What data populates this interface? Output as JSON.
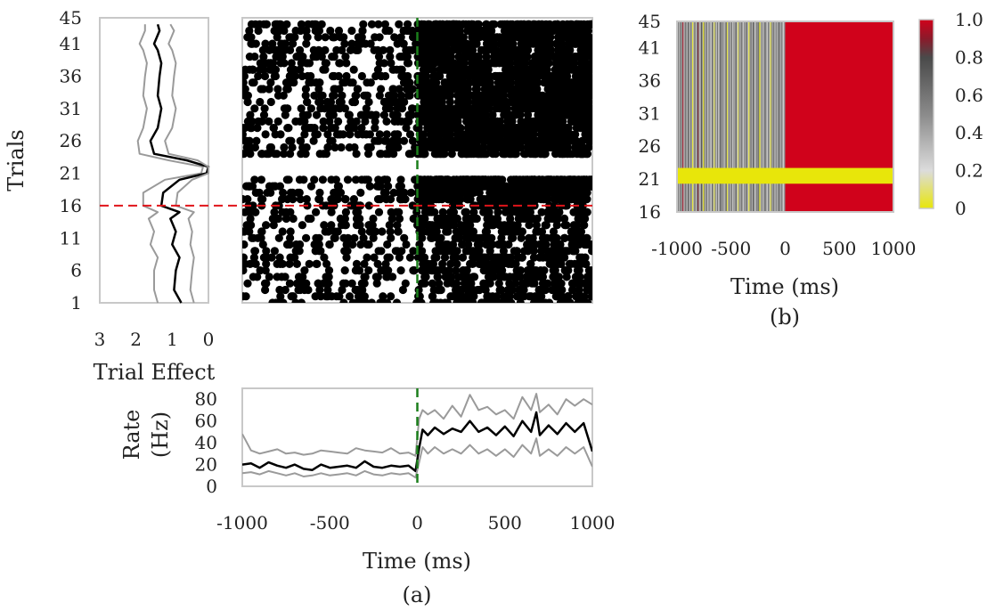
{
  "figure": {
    "panel_a_caption": "(a)",
    "panel_b_caption": "(b)"
  },
  "colors": {
    "frame": "#c8c8c8",
    "mean_line": "#000000",
    "band_line": "#9a9a9a",
    "spike": "#000000",
    "onset_marker": "#1b7f1b",
    "split_marker": "#e0141a",
    "heat_high": "#d0021b",
    "heat_low": "#e8e60a"
  },
  "chart_data": [
    {
      "id": "trial_effect",
      "type": "line",
      "xlabel": "Trial Effect",
      "ylabel": "Trials",
      "xlim": [
        3,
        0
      ],
      "ylim": [
        1,
        45
      ],
      "xticks": [
        3,
        2,
        1,
        0
      ],
      "yticks": [
        1,
        6,
        11,
        16,
        21,
        26,
        31,
        36,
        41,
        45
      ],
      "change_point_trial": 16,
      "series": [
        {
          "role": "lower",
          "y": [
            1,
            3,
            6,
            8,
            10,
            12,
            14,
            15,
            16,
            18,
            20,
            21,
            22,
            23,
            24,
            26,
            28,
            31,
            33,
            36,
            38,
            40,
            41,
            43,
            44
          ],
          "x": [
            1.4,
            1.5,
            1.5,
            1.4,
            1.6,
            1.5,
            1.65,
            1.4,
            1.8,
            1.8,
            1.2,
            0.2,
            0.15,
            1.1,
            1.9,
            1.95,
            1.8,
            1.7,
            1.8,
            1.75,
            1.7,
            1.8,
            1.9,
            1.75,
            1.75
          ]
        },
        {
          "role": "mean",
          "y": [
            1,
            3,
            6,
            8,
            10,
            12,
            14,
            15,
            16,
            18,
            20,
            21,
            22,
            23,
            24,
            26,
            28,
            31,
            33,
            36,
            38,
            40,
            41,
            43,
            44
          ],
          "x": [
            0.75,
            0.95,
            0.9,
            0.8,
            1.0,
            0.9,
            1.05,
            0.8,
            1.3,
            1.25,
            0.8,
            0.05,
            0.0,
            0.6,
            1.5,
            1.6,
            1.4,
            1.3,
            1.4,
            1.35,
            1.3,
            1.4,
            1.5,
            1.35,
            1.4
          ]
        },
        {
          "role": "upper",
          "y": [
            1,
            3,
            6,
            8,
            10,
            12,
            14,
            15,
            16,
            18,
            20,
            21,
            22,
            23,
            24,
            26,
            28,
            31,
            33,
            36,
            38,
            40,
            41,
            43,
            44
          ],
          "x": [
            0.4,
            0.5,
            0.45,
            0.4,
            0.5,
            0.45,
            0.55,
            0.4,
            0.9,
            0.85,
            0.45,
            0.0,
            0.0,
            0.3,
            1.1,
            1.2,
            1.0,
            0.9,
            1.0,
            0.95,
            0.9,
            1.0,
            1.1,
            0.95,
            1.05
          ]
        }
      ]
    },
    {
      "id": "raster",
      "type": "scatter",
      "xlim": [
        -1000,
        1000
      ],
      "ylim": [
        1,
        45
      ],
      "onset_time": 0,
      "change_point_trial": 16,
      "gap_trials": [
        21,
        23
      ],
      "spike_rate_hz": {
        "pre_low": 18,
        "post_low": 45,
        "pre_high": 24,
        "post_high": 85,
        "post_burst": 180
      },
      "burst_trials": [
        19,
        20
      ]
    },
    {
      "id": "rate",
      "type": "line",
      "xlabel": "Time (ms)",
      "ylabel": "Rate (Hz)",
      "ylabel_lines": [
        "Rate",
        "(Hz)"
      ],
      "xlim": [
        -1000,
        1000
      ],
      "ylim": [
        0,
        90
      ],
      "xticks": [
        -1000,
        -500,
        0,
        500,
        1000
      ],
      "xtick_labels": [
        "-1000",
        "-500",
        "0",
        "500",
        "1000"
      ],
      "yticks": [
        0,
        20,
        40,
        60,
        80
      ],
      "onset_time": 0,
      "series": [
        {
          "role": "upper",
          "x": [
            -1000,
            -950,
            -900,
            -850,
            -800,
            -750,
            -700,
            -650,
            -600,
            -550,
            -500,
            -450,
            -400,
            -350,
            -300,
            -250,
            -200,
            -150,
            -100,
            -50,
            -10,
            10,
            30,
            60,
            100,
            150,
            200,
            250,
            300,
            350,
            400,
            450,
            500,
            550,
            600,
            650,
            680,
            700,
            750,
            800,
            850,
            900,
            950,
            1000
          ],
          "y": [
            48,
            33,
            30,
            32,
            34,
            30,
            31,
            29,
            30,
            33,
            32,
            31,
            30,
            35,
            33,
            32,
            31,
            35,
            30,
            31,
            28,
            62,
            70,
            66,
            70,
            62,
            74,
            64,
            84,
            70,
            73,
            66,
            70,
            62,
            82,
            70,
            85,
            68,
            75,
            66,
            80,
            74,
            80,
            75
          ]
        },
        {
          "role": "mean",
          "x": [
            -1000,
            -950,
            -900,
            -850,
            -800,
            -750,
            -700,
            -650,
            -600,
            -550,
            -500,
            -450,
            -400,
            -350,
            -300,
            -250,
            -200,
            -150,
            -100,
            -50,
            -10,
            10,
            30,
            60,
            100,
            150,
            200,
            250,
            300,
            350,
            400,
            450,
            500,
            550,
            600,
            650,
            680,
            700,
            750,
            800,
            850,
            900,
            950,
            1000
          ],
          "y": [
            20,
            21,
            17,
            22,
            19,
            17,
            20,
            16,
            15,
            20,
            17,
            18,
            19,
            17,
            23,
            18,
            17,
            19,
            18,
            19,
            14,
            35,
            52,
            47,
            54,
            48,
            53,
            50,
            60,
            50,
            54,
            47,
            55,
            46,
            60,
            50,
            68,
            47,
            56,
            48,
            58,
            50,
            58,
            32
          ]
        },
        {
          "role": "lower",
          "x": [
            -1000,
            -950,
            -900,
            -850,
            -800,
            -750,
            -700,
            -650,
            -600,
            -550,
            -500,
            -450,
            -400,
            -350,
            -300,
            -250,
            -200,
            -150,
            -100,
            -50,
            -10,
            10,
            30,
            60,
            100,
            150,
            200,
            250,
            300,
            350,
            400,
            450,
            500,
            550,
            600,
            650,
            680,
            700,
            750,
            800,
            850,
            900,
            950,
            1000
          ],
          "y": [
            12,
            13,
            11,
            14,
            12,
            10,
            12,
            9,
            10,
            12,
            10,
            11,
            12,
            10,
            14,
            11,
            10,
            12,
            11,
            12,
            8,
            22,
            36,
            30,
            36,
            30,
            34,
            30,
            38,
            30,
            34,
            28,
            34,
            27,
            38,
            30,
            44,
            28,
            34,
            28,
            36,
            30,
            36,
            18
          ]
        }
      ]
    },
    {
      "id": "heatmap",
      "type": "heatmap",
      "xlabel": "Time (ms)",
      "xlim": [
        -1000,
        1000
      ],
      "ylim": [
        16,
        45
      ],
      "xticks": [
        -1000,
        -500,
        0,
        500,
        1000
      ],
      "xtick_labels": [
        "-1000",
        "-500",
        "0",
        "500",
        "1000"
      ],
      "yticks": [
        16,
        21,
        26,
        31,
        36,
        41,
        45
      ],
      "colorbar": {
        "range": [
          0,
          1
        ],
        "ticks": [
          0,
          0.2,
          0.4,
          0.6,
          0.8,
          1.0
        ],
        "tick_labels": [
          "0",
          "0.2",
          "0.4",
          "0.6",
          "0.8",
          "1.0"
        ],
        "colormap": [
          [
            0,
            "#e8e60a"
          ],
          [
            0.2,
            "#dcdcdc"
          ],
          [
            0.5,
            "#8a8a8a"
          ],
          [
            0.8,
            "#4a4a4a"
          ],
          [
            0.9,
            "#8b1a2a"
          ],
          [
            1.0,
            "#d0021b"
          ]
        ]
      },
      "yellow_band_trials": [
        21,
        22
      ],
      "post_onset_value": 1.0,
      "pre_onset_values": [
        0.42,
        0.55,
        0.3,
        0.7,
        0.38,
        0.91,
        0.25,
        0.62,
        0.48,
        0.33,
        0.8,
        0.27,
        0.58,
        0.44,
        0.05,
        0.36,
        0.66,
        0.29,
        0.52,
        0.87,
        0.4,
        0.31,
        0.74,
        0.46,
        0.04,
        0.57,
        0.35,
        0.63,
        0.28,
        0.5,
        0.45,
        0.22,
        0.68,
        0.39,
        0.08,
        0.53,
        0.31,
        0.6,
        0.26,
        0.49,
        0.72,
        0.37,
        0.58,
        0.3,
        0.44,
        0.65,
        0.06,
        0.41,
        0.55,
        0.34,
        0.62,
        0.28,
        0.47,
        0.39,
        0.71,
        0.33,
        0.09,
        0.52,
        0.36,
        0.6,
        0.43,
        0.27,
        0.56,
        0.38,
        0.68,
        0.31,
        0.05,
        0.46,
        0.58,
        0.35,
        0.74,
        0.41,
        0.29,
        0.55,
        0.48,
        0.62,
        0.03,
        0.37,
        0.52,
        0.33,
        0.45,
        0.66,
        0.4,
        0.28,
        0.59,
        0.35,
        0.07,
        0.5,
        0.43,
        0.61,
        0.3,
        0.54,
        0.38,
        0.47,
        0.69,
        0.32,
        0.56,
        0.41,
        0.25,
        0.52
      ]
    }
  ]
}
